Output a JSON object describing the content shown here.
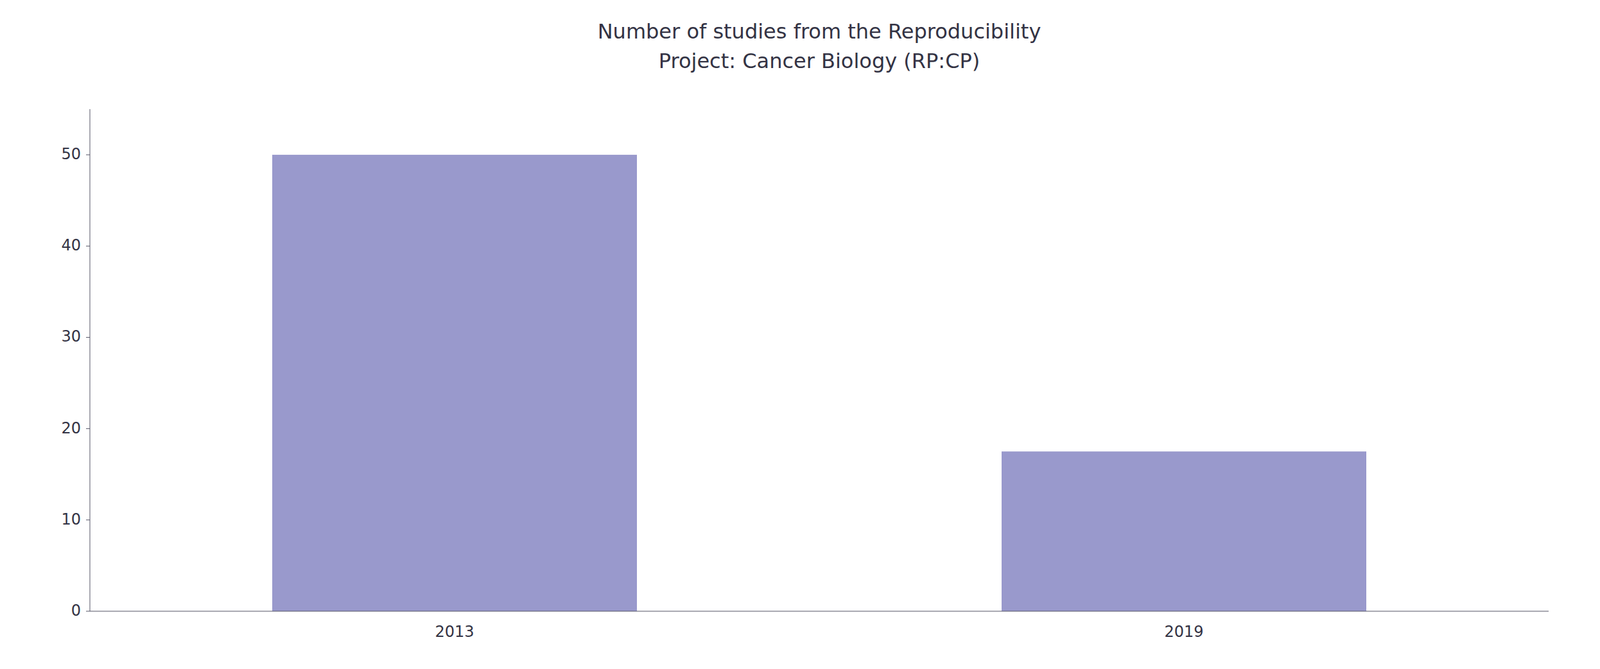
{
  "chart_data": {
    "type": "bar",
    "title": "Number of studies from the Reproducibility\nProject: Cancer Biology (RP:CP)",
    "categories": [
      "2013",
      "2019"
    ],
    "values": [
      50,
      17.5
    ],
    "color": "#9999cc",
    "ylim": [
      0,
      55
    ],
    "yticks": [
      0,
      10,
      20,
      30,
      40,
      50
    ],
    "grid": false
  }
}
